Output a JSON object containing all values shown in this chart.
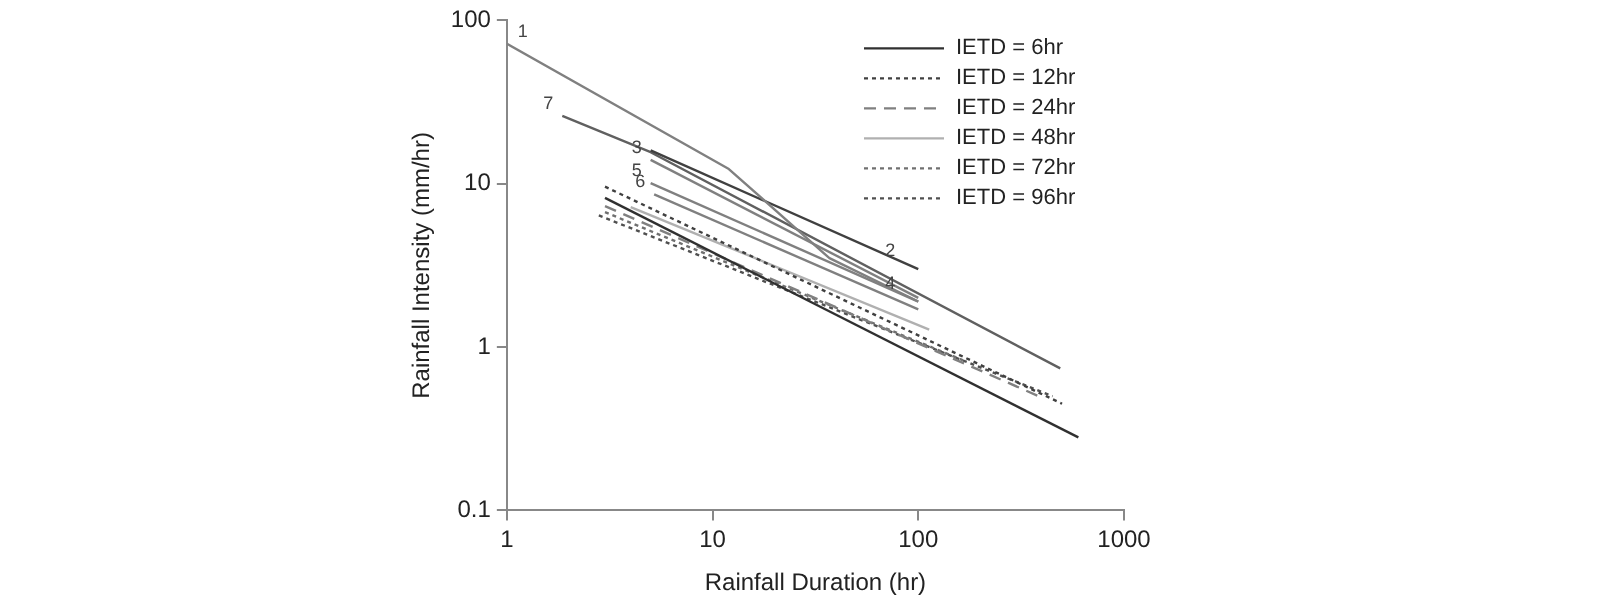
{
  "chart_data": {
    "type": "line",
    "xlabel": "Rainfall Duration (hr)",
    "ylabel": "Rainfall Intensity (mm/hr)",
    "log": "xy",
    "xlim": [
      1,
      1000
    ],
    "ylim": [
      0.1,
      100
    ],
    "xticks": [
      1,
      10,
      100,
      1000
    ],
    "yticks": [
      0.1,
      1,
      10,
      100
    ],
    "grid": false,
    "legend": "top right",
    "marker": "none",
    "series": [
      {
        "name": "IETD = 6hr",
        "color": "#303030",
        "line_style": "solid",
        "x": [
          3,
          600
        ],
        "values": [
          8.2,
          0.28
        ]
      },
      {
        "name": "IETD = 12hr",
        "color": "#404040",
        "line_style": "dotted",
        "x": [
          3,
          500
        ],
        "values": [
          9.6,
          0.45
        ]
      },
      {
        "name": "IETD = 24hr",
        "color": "#808080",
        "line_style": "dashed",
        "x": [
          3,
          400
        ],
        "values": [
          7.3,
          0.49
        ]
      },
      {
        "name": "IETD = 48hr",
        "color": "#b0b0b0",
        "line_style": "solid",
        "x": [
          4,
          113
        ],
        "values": [
          7.2,
          1.28
        ]
      },
      {
        "name": "IETD = 72hr",
        "color": "#707070",
        "line_style": "dotted",
        "x": [
          3,
          165
        ],
        "values": [
          6.7,
          0.83
        ]
      },
      {
        "name": "IETD = 96hr",
        "color": "#505050",
        "line_style": "dotted",
        "x": [
          2.8,
          450
        ],
        "values": [
          6.4,
          0.5
        ]
      },
      {
        "color": "#808080",
        "line_style": "solid",
        "x": [
          1,
          12,
          37,
          100
        ],
        "values": [
          72,
          12.3,
          3.5,
          1.9
        ]
      },
      {
        "color": "#404040",
        "line_style": "solid",
        "x": [
          5,
          100
        ],
        "values": [
          16,
          3
        ]
      },
      {
        "color": "#808080",
        "line_style": "solid",
        "x": [
          5,
          100
        ],
        "values": [
          14,
          2
        ]
      },
      {
        "color": "#808080",
        "line_style": "solid",
        "x": [
          5,
          100
        ],
        "values": [
          10.1,
          1.9
        ]
      },
      {
        "color": "#808080",
        "line_style": "solid",
        "x": [
          5.2,
          100
        ],
        "values": [
          8.6,
          1.7
        ]
      },
      {
        "color": "#606060",
        "line_style": "solid",
        "x": [
          1.86,
          5,
          490
        ],
        "values": [
          26,
          15.6,
          0.74
        ]
      }
    ],
    "annotations": [
      {
        "text": "1",
        "x": 1,
        "y": 72
      },
      {
        "text": "7",
        "x": 1.86,
        "y": 26
      },
      {
        "text": "3",
        "x": 5,
        "y": 14
      },
      {
        "text": "5",
        "x": 5,
        "y": 10.1
      },
      {
        "text": "6",
        "x": 5.2,
        "y": 8.6
      },
      {
        "text": "2",
        "x": 100,
        "y": 3
      },
      {
        "text": "4",
        "x": 100,
        "y": 1.9
      }
    ]
  }
}
